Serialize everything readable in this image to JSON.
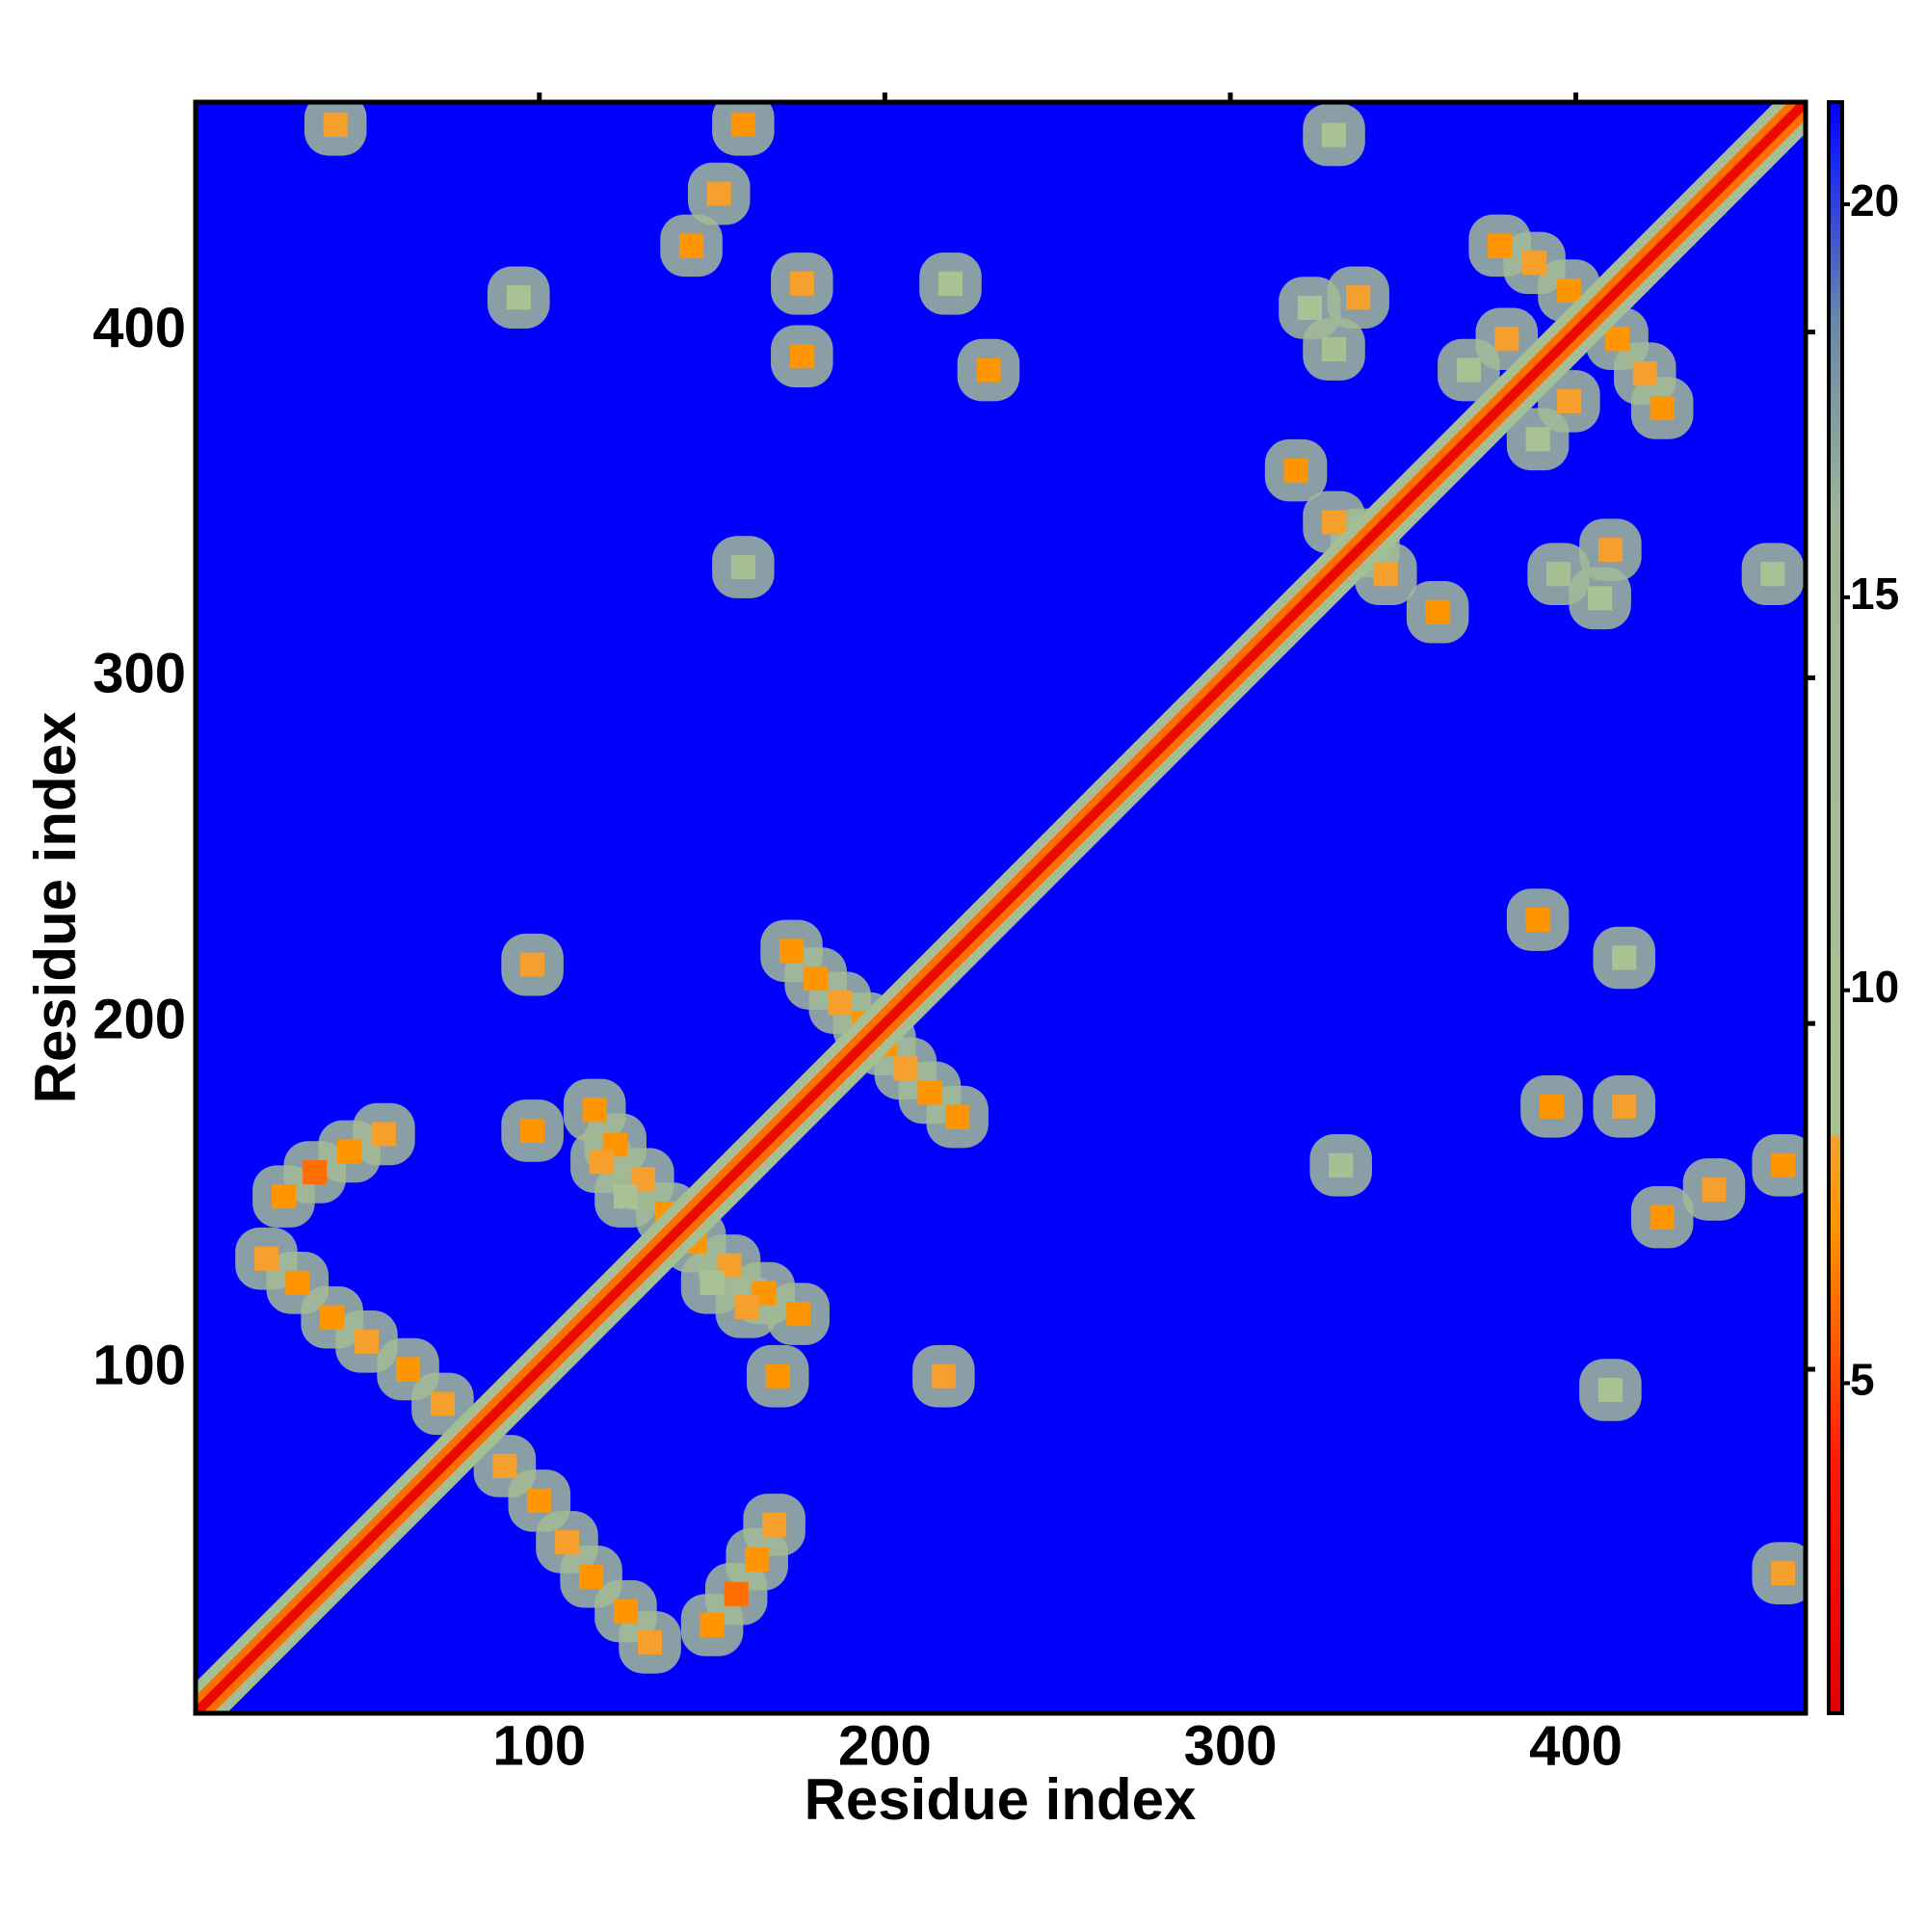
{
  "chart_data": {
    "type": "heatmap",
    "xlabel": "Residue index",
    "ylabel": "Residue index",
    "xlim": [
      0.5,
      466.5
    ],
    "ylim": [
      0.5,
      466.5
    ],
    "xticks": [
      100,
      200,
      300,
      400
    ],
    "yticks": [
      100,
      200,
      300,
      400
    ],
    "symmetric": true,
    "colorbar": {
      "clim": [
        0.8,
        21.3
      ],
      "ticks": [
        5,
        10,
        15,
        20
      ]
    },
    "colorscale": [
      [
        0.8,
        "#e00000"
      ],
      [
        4,
        "#ff1a00"
      ],
      [
        5.5,
        "#ff5a00"
      ],
      [
        7,
        "#ff9500"
      ],
      [
        8.1,
        "#f4a030"
      ],
      [
        8.2,
        "#a9c392"
      ],
      [
        16,
        "#9db597"
      ],
      [
        18.5,
        "#6a88a8"
      ],
      [
        20.5,
        "#1a2cf0"
      ],
      [
        21.3,
        "#0000ff"
      ]
    ],
    "diagonal": {
      "offsets": [
        9,
        5,
        2
      ],
      "values": [
        11,
        6,
        2
      ]
    },
    "contacts": {
      "x": [
        21,
        30,
        40,
        50,
        62,
        72,
        26,
        35,
        45,
        55,
        116,
        122,
        130,
        137,
        125,
        118,
        98,
        98,
        173,
        180,
        187,
        194,
        41,
        144,
        152,
        159,
        176,
        176,
        219,
        230,
        94,
        159,
        330,
        323,
        337,
        330,
        378,
        388,
        398,
        369,
        380,
        319,
        330,
        340
      ],
      "y": [
        132,
        125,
        115,
        108,
        100,
        90,
        150,
        157,
        163,
        168,
        175,
        165,
        155,
        145,
        150,
        160,
        169,
        217,
        221,
        213,
        206,
        200,
        460,
        425,
        440,
        460,
        414,
        393,
        414,
        389,
        410,
        332,
        457,
        407,
        410,
        395,
        425,
        420,
        412,
        389,
        398,
        360,
        345,
        338
      ],
      "values": [
        8,
        7,
        7,
        8,
        7,
        8,
        7,
        6,
        7,
        8,
        7,
        7,
        8,
        7,
        9,
        8,
        7,
        8,
        7,
        7,
        8,
        7,
        8,
        7,
        8,
        7,
        8,
        7,
        9,
        7,
        9,
        10,
        9,
        9,
        8,
        10,
        7,
        8,
        7,
        9,
        8,
        7,
        8,
        7
      ]
    }
  }
}
